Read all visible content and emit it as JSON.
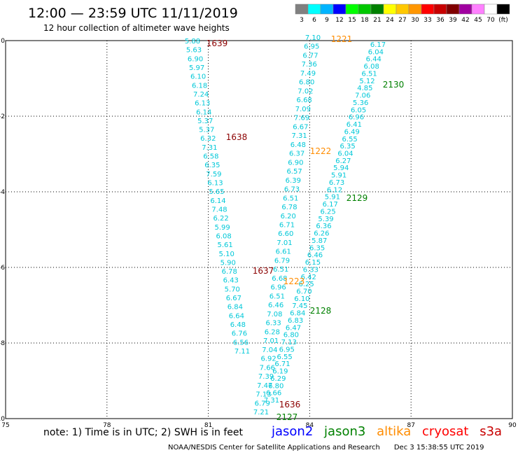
{
  "title": "12:00 — 23:59 UTC 11/11/2019",
  "subtitle": "12 hour collection of altimeter wave heights",
  "colorbar": {
    "colors": [
      "#808080",
      "#00ffff",
      "#00b4ff",
      "#0000ff",
      "#00ff00",
      "#00c800",
      "#008000",
      "#ffff00",
      "#ffc800",
      "#ff9600",
      "#ff0000",
      "#c80000",
      "#800000",
      "#a000a0",
      "#ff80ff",
      "#ffffff",
      "#000000"
    ],
    "labels": [
      "3",
      "6",
      "9",
      "12",
      "15",
      "18",
      "21",
      "24",
      "27",
      "30",
      "33",
      "36",
      "39",
      "42",
      "45",
      "70",
      "(ft)"
    ]
  },
  "map": {
    "x_ticks": [
      "75",
      "78",
      "81",
      "84",
      "87",
      "90"
    ],
    "y_ticks": [
      "0",
      "-2",
      "-4",
      "-6",
      "-8",
      "-10"
    ],
    "tracks": [
      {
        "name": "track-1639",
        "label": "1639",
        "label_color": "#8b0000",
        "values": [
          "5.88",
          "5.63",
          "6.90",
          "5.97",
          "6.10",
          "6.18",
          "7.24",
          "6.13",
          "6.14",
          "5.37",
          "5.37",
          "6.32",
          "7.31",
          "6.58",
          "6.35",
          "7.59",
          "6.13",
          "5.65",
          "6.14",
          "7.48",
          "6.22",
          "5.99",
          "6.08",
          "5.61",
          "5.10",
          "5.90",
          "6.78",
          "6.43",
          "5.70",
          "6.67",
          "6.84",
          "6.64",
          "6.48",
          "6.76",
          "6.56",
          "7.11"
        ]
      },
      {
        "name": "track-1221",
        "label": "1221",
        "label_color": "#ff8c00",
        "values": [
          "7.10",
          "6.95",
          "6.77",
          "7.36",
          "7.49",
          "6.80",
          "7.02",
          "6.68",
          "7.09",
          "7.69",
          "6.67",
          "7.31",
          "6.48",
          "6.37",
          "6.90",
          "6.57",
          "6.39",
          "6.73",
          "6.51",
          "6.78",
          "6.20",
          "6.71",
          "6.60",
          "7.01",
          "6.61",
          "6.79",
          "6.51",
          "6.68",
          "6.96",
          "6.51",
          "6.46",
          "7.08",
          "6.33",
          "6.28",
          "7.01",
          "7.04",
          "6.92",
          "7.66",
          "7.39",
          "7.47",
          "7.13",
          "6.79",
          "7.21"
        ]
      },
      {
        "name": "track-2130",
        "label": "2130",
        "label_color": "#008000",
        "values": [
          "6.17",
          "6.04",
          "6.44",
          "6.08",
          "6.51",
          "5.12",
          "4.85",
          "7.06",
          "5.36",
          "6.05",
          "6.96",
          "6.41",
          "6.49",
          "6.55",
          "6.35",
          "6.04",
          "6.27",
          "5.94",
          "5.91",
          "6.73",
          "6.12",
          "5.91",
          "6.17",
          "6.25",
          "5.39",
          "6.36",
          "6.26",
          "5.87",
          "6.35",
          "6.46",
          "6.15",
          "6.33",
          "6.42",
          "6.25",
          "6.70",
          "6.10",
          "7.45",
          "6.84",
          "6.83",
          "6.47",
          "6.80",
          "7.13",
          "6.95",
          "6.55",
          "6.71",
          "6.19",
          "6.29",
          "6.80",
          "6.66",
          "7.31"
        ]
      }
    ],
    "time_labels": [
      {
        "text": "1639",
        "color": "#8b0000"
      },
      {
        "text": "1221",
        "color": "#ff8c00"
      },
      {
        "text": "2130",
        "color": "#008000"
      },
      {
        "text": "1638",
        "color": "#8b0000"
      },
      {
        "text": "1222",
        "color": "#ff8c00"
      },
      {
        "text": "2129",
        "color": "#008000"
      },
      {
        "text": "1637",
        "color": "#8b0000"
      },
      {
        "text": "1223",
        "color": "#ff8c00"
      },
      {
        "text": "2128",
        "color": "#008000"
      },
      {
        "text": "1636",
        "color": "#8b0000"
      },
      {
        "text": "2127",
        "color": "#008000"
      }
    ]
  },
  "notes": "note: 1) Time is in UTC; 2) SWH is in feet",
  "satellites": [
    {
      "name": "jason2",
      "color": "#0000ff"
    },
    {
      "name": "jason3",
      "color": "#008000"
    },
    {
      "name": "altika",
      "color": "#ff8c00"
    },
    {
      "name": "cryosat",
      "color": "#ff0000"
    },
    {
      "name": "s3a",
      "color": "#c80000"
    }
  ],
  "credit": {
    "org": "NOAA/NESDIS Center for Satellite Applications and Research",
    "timestamp": "Dec  3 15:38:55 UTC 2019"
  }
}
